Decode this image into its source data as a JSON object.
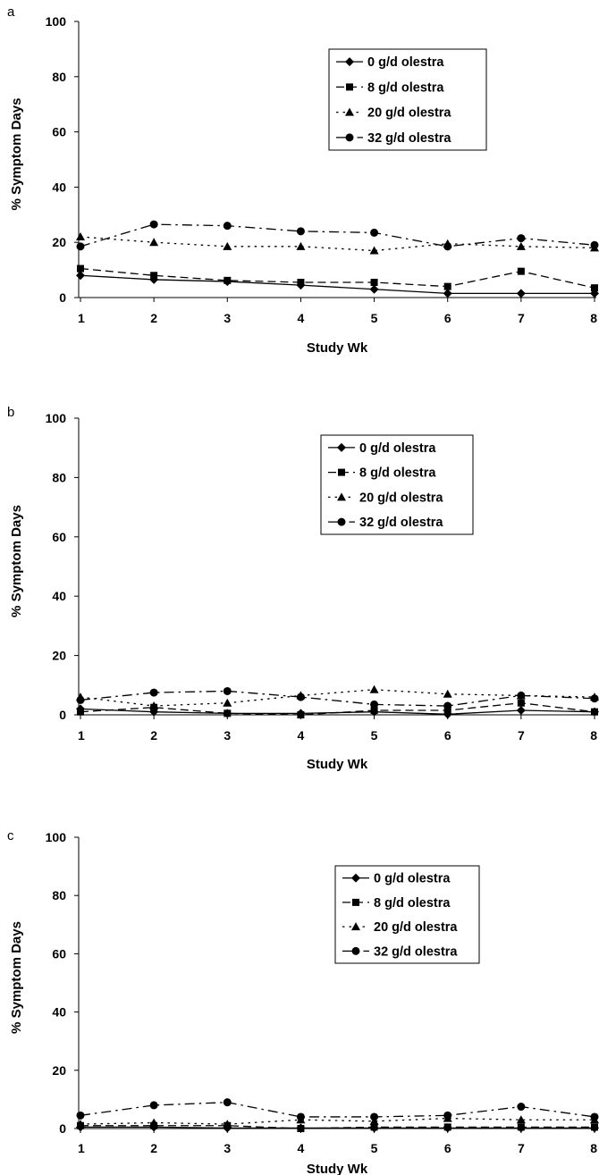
{
  "chart_data": [
    {
      "type": "line",
      "panel_label": "a",
      "xlabel": "Study Wk",
      "ylabel": "% Symptom Days",
      "ylim": [
        0,
        100
      ],
      "yticks": [
        0,
        20,
        40,
        60,
        80,
        100
      ],
      "categories": [
        "1",
        "2",
        "3",
        "4",
        "5",
        "6",
        "7",
        "8"
      ],
      "legend_position": "top-right",
      "grid": false,
      "series": [
        {
          "name": "0 g/d olestra",
          "marker": "diamond",
          "dash": "solid",
          "values": [
            8,
            6.5,
            5.8,
            4.5,
            3,
            1.5,
            1.5,
            1.5
          ]
        },
        {
          "name": "8 g/d olestra",
          "marker": "square",
          "dash": "dashed",
          "values": [
            10.5,
            8,
            6.2,
            5.5,
            5.5,
            4,
            9.5,
            3.5
          ]
        },
        {
          "name": "20 g/d olestra",
          "marker": "triangle",
          "dash": "dotted",
          "values": [
            22,
            20,
            18.5,
            18.5,
            17,
            19.5,
            18.5,
            18
          ]
        },
        {
          "name": "32 g/d olestra",
          "marker": "circle",
          "dash": "dashdot",
          "values": [
            18.5,
            26.5,
            26,
            24,
            23.5,
            18.5,
            21.5,
            19
          ]
        }
      ]
    },
    {
      "type": "line",
      "panel_label": "b",
      "xlabel": "Study  Wk",
      "ylabel": "% Symptom Days",
      "ylim": [
        0,
        100
      ],
      "yticks": [
        0,
        20,
        40,
        60,
        80,
        100
      ],
      "categories": [
        "1",
        "2",
        "3",
        "4",
        "5",
        "6",
        "7",
        "8"
      ],
      "legend_position": "top-right",
      "grid": false,
      "series": [
        {
          "name": "0  g/d olestra",
          "marker": "diamond",
          "dash": "solid",
          "values": [
            2,
            1,
            0.5,
            0.5,
            1,
            0.2,
            1.5,
            1
          ]
        },
        {
          "name": "8  g/d olestra",
          "marker": "square",
          "dash": "dashed",
          "values": [
            1,
            2.5,
            0.5,
            0,
            1.5,
            1.5,
            4,
            1
          ]
        },
        {
          "name": "20 g/d olestra",
          "marker": "triangle",
          "dash": "dotted",
          "values": [
            6,
            3,
            4,
            6.5,
            8.5,
            7,
            6.5,
            6
          ]
        },
        {
          "name": "32 g/d olestra",
          "marker": "circle",
          "dash": "dashdot",
          "values": [
            5,
            7.5,
            8,
            6,
            3.5,
            3,
            6.5,
            5.5
          ]
        }
      ]
    },
    {
      "type": "line",
      "panel_label": "c",
      "xlabel": "Study Wk",
      "ylabel": "% Symptom Days",
      "ylim": [
        0,
        100
      ],
      "yticks": [
        0,
        20,
        40,
        60,
        80,
        100
      ],
      "categories": [
        "1",
        "2",
        "3",
        "4",
        "5",
        "6",
        "7",
        "8"
      ],
      "legend_position": "top-right",
      "grid": false,
      "series": [
        {
          "name": "0 g/d olestra",
          "marker": "diamond",
          "dash": "solid",
          "values": [
            0.5,
            0.5,
            0.2,
            0.2,
            0.2,
            0.2,
            0.2,
            0.2
          ]
        },
        {
          "name": "8 g/d olestra",
          "marker": "square",
          "dash": "dashed",
          "values": [
            1,
            1,
            1,
            0,
            0.5,
            0.5,
            0.5,
            0.5
          ]
        },
        {
          "name": "20 g/d olestra",
          "marker": "triangle",
          "dash": "dotted",
          "values": [
            1.5,
            2,
            1.5,
            3,
            2.5,
            3.5,
            3,
            3
          ]
        },
        {
          "name": "32 g/d olestra",
          "marker": "circle",
          "dash": "dashdot",
          "values": [
            4.5,
            8,
            9,
            4,
            4,
            4.5,
            7.5,
            4
          ]
        }
      ]
    }
  ]
}
